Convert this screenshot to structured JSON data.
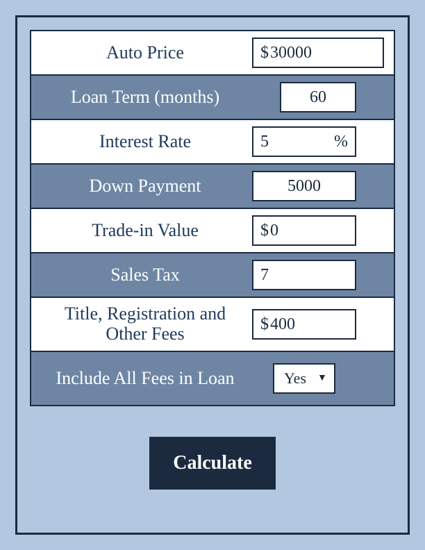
{
  "colors": {
    "page_bg": "#b4c7e0",
    "border": "#1b2a3f",
    "row_white": "#ffffff",
    "row_blue": "#6e86a4",
    "text_dark": "#213a5c",
    "text_light": "#ffffff",
    "button_bg": "#1b2a3f"
  },
  "form": {
    "auto_price": {
      "label": "Auto Price",
      "value": "30000",
      "prefix": "$"
    },
    "loan_term": {
      "label": "Loan Term (months)",
      "value": "60"
    },
    "interest_rate": {
      "label": "Interest Rate",
      "value": "5",
      "suffix": "%"
    },
    "down_payment": {
      "label": "Down Payment",
      "value": "5000"
    },
    "trade_in": {
      "label": "Trade-in Value",
      "value": "0",
      "prefix": "$"
    },
    "sales_tax": {
      "label": "Sales Tax",
      "value": "7"
    },
    "fees": {
      "label": "Title, Registration and Other Fees",
      "value": "400",
      "prefix": "$"
    },
    "include_fees": {
      "label": "Include All Fees in Loan",
      "value": "Yes"
    }
  },
  "actions": {
    "calculate": "Calculate"
  }
}
